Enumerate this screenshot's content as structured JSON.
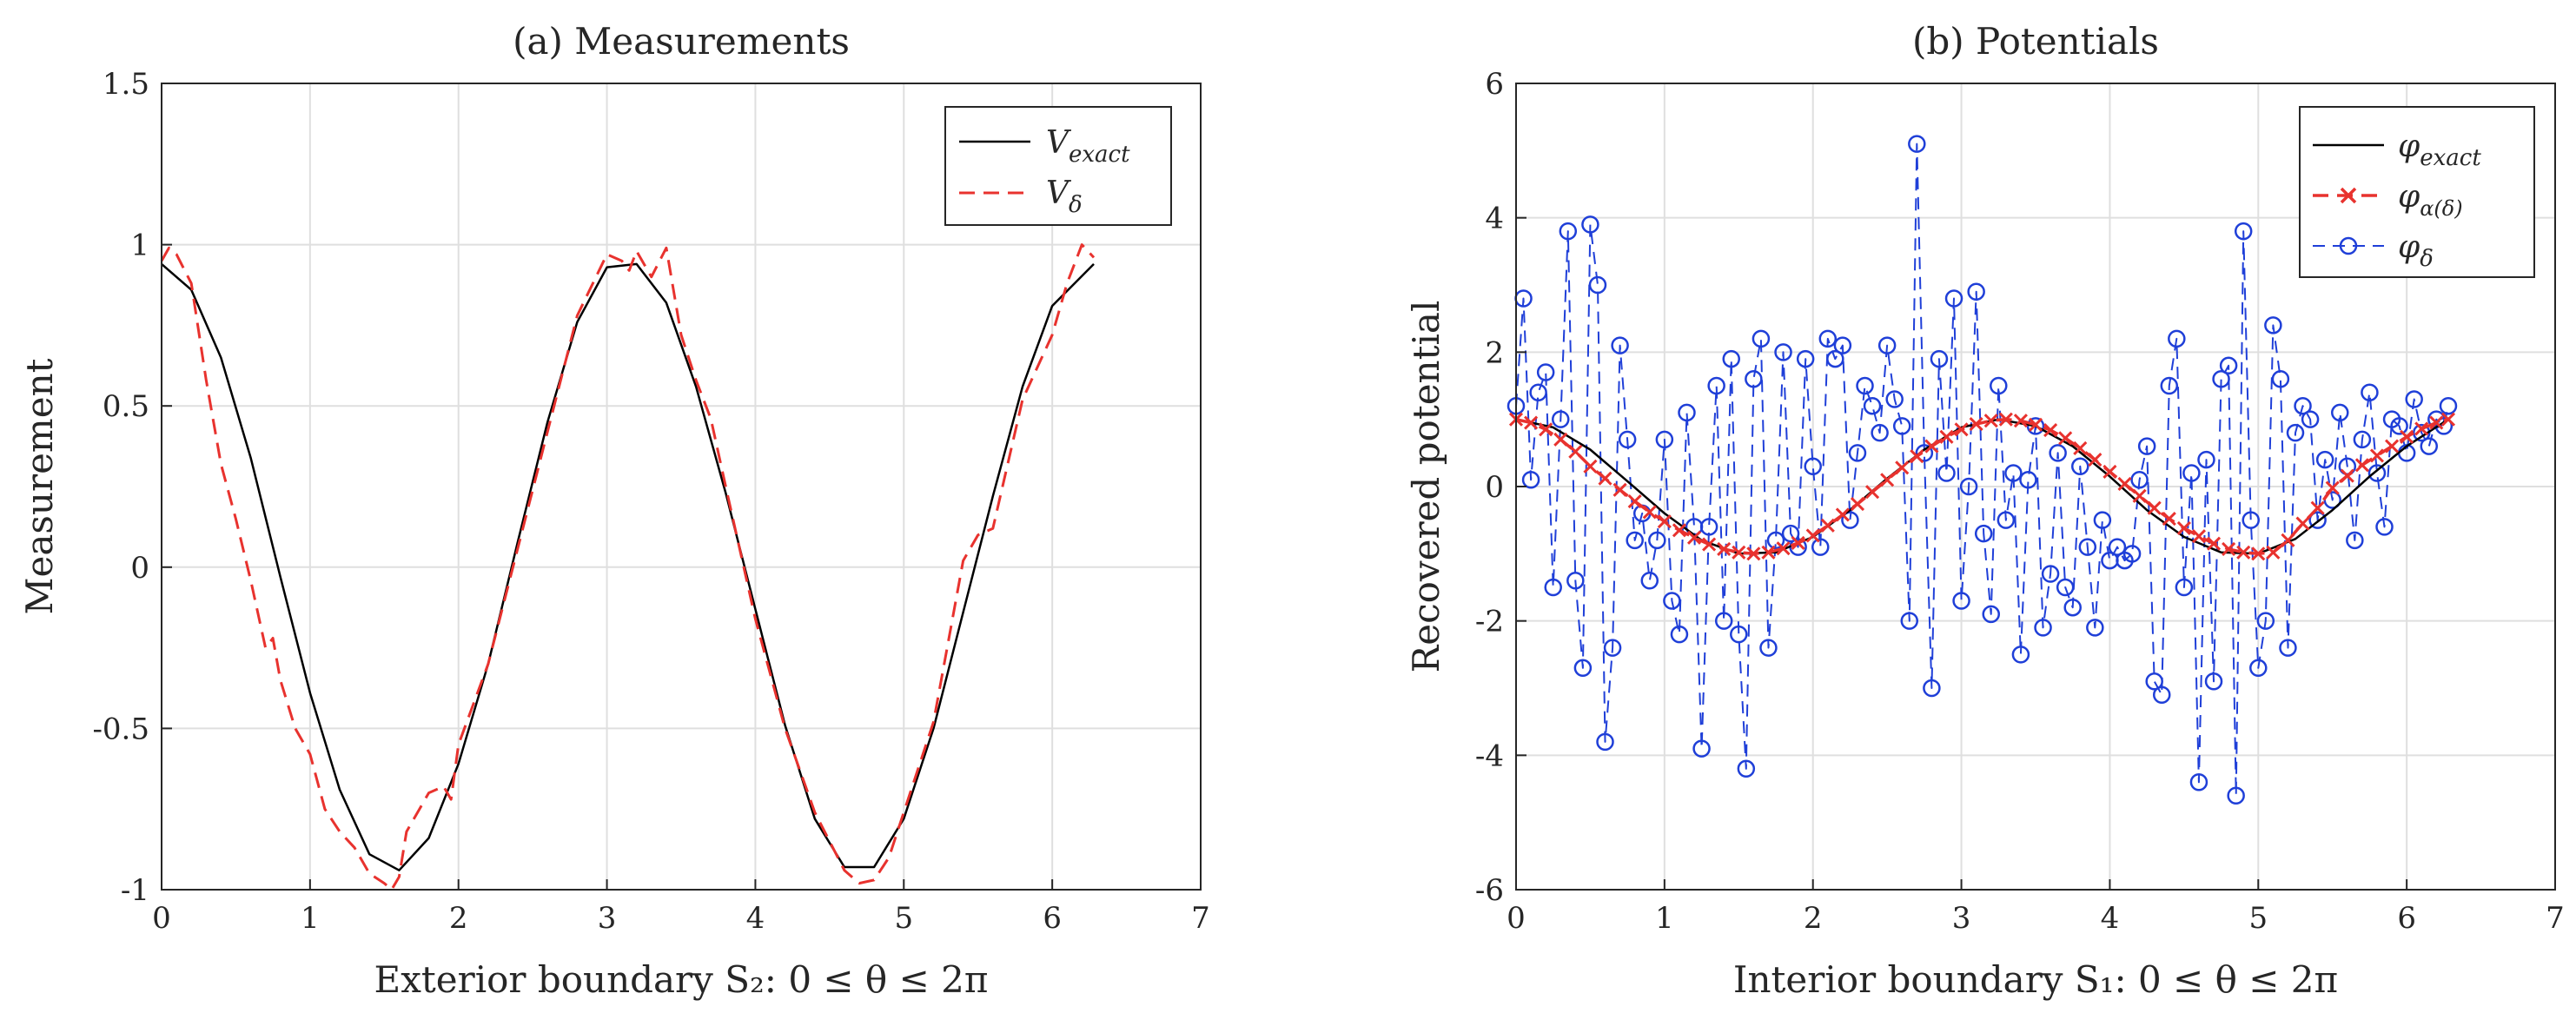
{
  "chart_data": [
    {
      "id": "a",
      "type": "line",
      "title": "(a) Measurements",
      "xlabel": "Exterior boundary S₂: 0 ≤ θ ≤ 2π",
      "ylabel": "Measurement",
      "xlim": [
        0,
        7
      ],
      "ylim": [
        -1,
        1.5
      ],
      "xticks": [
        0,
        1,
        2,
        3,
        4,
        5,
        6,
        7
      ],
      "xtick_labels": [
        "0",
        "1",
        "2",
        "3",
        "4",
        "5",
        "6",
        "7"
      ],
      "yticks": [
        -1,
        -0.5,
        0,
        0.5,
        1,
        1.5
      ],
      "ytick_labels": [
        "-1",
        "-0.5",
        "0",
        "0.5",
        "1",
        "1.5"
      ],
      "grid": true,
      "legend_position": "top-right",
      "series": [
        {
          "name": "V_exact",
          "legend_label": "V",
          "legend_sub": "exact",
          "style": "solid",
          "color": "#000000",
          "marker": "none",
          "x": [
            0,
            0.2,
            0.4,
            0.6,
            0.8,
            1.0,
            1.2,
            1.4,
            1.6,
            1.8,
            2.0,
            2.2,
            2.4,
            2.6,
            2.8,
            3.0,
            3.2,
            3.4,
            3.6,
            3.8,
            4.0,
            4.2,
            4.4,
            4.6,
            4.8,
            5.0,
            5.2,
            5.4,
            5.6,
            5.8,
            6.0,
            6.28
          ],
          "y": [
            0.94,
            0.86,
            0.65,
            0.34,
            -0.03,
            -0.39,
            -0.69,
            -0.89,
            -0.94,
            -0.84,
            -0.61,
            -0.3,
            0.08,
            0.45,
            0.76,
            0.93,
            0.94,
            0.82,
            0.56,
            0.23,
            -0.13,
            -0.49,
            -0.78,
            -0.93,
            -0.93,
            -0.78,
            -0.5,
            -0.14,
            0.22,
            0.56,
            0.81,
            0.94
          ]
        },
        {
          "name": "V_delta",
          "legend_label": "V",
          "legend_sub": "δ",
          "style": "dashed",
          "color": "#e8322e",
          "marker": "none",
          "x": [
            0,
            0.05,
            0.1,
            0.2,
            0.3,
            0.4,
            0.5,
            0.6,
            0.7,
            0.75,
            0.8,
            0.9,
            1.0,
            1.1,
            1.2,
            1.3,
            1.4,
            1.5,
            1.55,
            1.6,
            1.65,
            1.7,
            1.8,
            1.9,
            1.95,
            2.0,
            2.2,
            2.4,
            2.6,
            2.8,
            3.0,
            3.1,
            3.15,
            3.2,
            3.3,
            3.4,
            3.5,
            3.6,
            3.7,
            3.8,
            4.0,
            4.2,
            4.4,
            4.6,
            4.7,
            4.8,
            4.9,
            5.0,
            5.2,
            5.4,
            5.5,
            5.6,
            5.8,
            6.0,
            6.1,
            6.2,
            6.28
          ],
          "y": [
            0.95,
            0.99,
            0.97,
            0.88,
            0.58,
            0.32,
            0.15,
            -0.04,
            -0.25,
            -0.22,
            -0.35,
            -0.5,
            -0.58,
            -0.75,
            -0.82,
            -0.87,
            -0.95,
            -0.98,
            -1.0,
            -0.96,
            -0.82,
            -0.78,
            -0.7,
            -0.68,
            -0.72,
            -0.55,
            -0.3,
            0.06,
            0.42,
            0.78,
            0.97,
            0.95,
            0.92,
            0.98,
            0.9,
            0.99,
            0.72,
            0.58,
            0.46,
            0.25,
            -0.16,
            -0.5,
            -0.76,
            -0.94,
            -0.98,
            -0.97,
            -0.9,
            -0.76,
            -0.48,
            0.02,
            0.1,
            0.12,
            0.52,
            0.72,
            0.88,
            1.0,
            0.96
          ]
        }
      ]
    },
    {
      "id": "b",
      "type": "line",
      "title": "(b) Potentials",
      "xlabel": "Interior boundary S₁: 0 ≤ θ ≤ 2π",
      "ylabel": "Recovered potential",
      "xlim": [
        0,
        7
      ],
      "ylim": [
        -6,
        6
      ],
      "xticks": [
        0,
        1,
        2,
        3,
        4,
        5,
        6,
        7
      ],
      "xtick_labels": [
        "0",
        "1",
        "2",
        "3",
        "4",
        "5",
        "6",
        "7"
      ],
      "yticks": [
        -6,
        -4,
        -2,
        0,
        2,
        4,
        6
      ],
      "ytick_labels": [
        "-6",
        "-4",
        "-2",
        "0",
        "2",
        "4",
        "6"
      ],
      "grid": true,
      "legend_position": "top-right",
      "series": [
        {
          "name": "phi_exact",
          "legend_label": "φ",
          "legend_sub": "exact",
          "style": "solid",
          "color": "#000000",
          "marker": "none",
          "x": [
            0,
            0.25,
            0.5,
            0.75,
            1.0,
            1.25,
            1.5,
            1.75,
            2.0,
            2.25,
            2.5,
            2.75,
            3.0,
            3.25,
            3.5,
            3.75,
            4.0,
            4.25,
            4.5,
            4.75,
            5.0,
            5.25,
            5.5,
            5.75,
            6.0,
            6.28
          ],
          "y": [
            1.0,
            0.88,
            0.55,
            0.08,
            -0.4,
            -0.8,
            -1.0,
            -0.98,
            -0.75,
            -0.35,
            0.12,
            0.55,
            0.88,
            1.0,
            0.9,
            0.6,
            0.15,
            -0.35,
            -0.75,
            -0.98,
            -1.0,
            -0.78,
            -0.35,
            0.15,
            0.6,
            1.0
          ]
        },
        {
          "name": "phi_alpha_delta",
          "legend_label": "φ",
          "legend_sub": "α(δ)",
          "style": "dashed",
          "color": "#e8322e",
          "marker": "x",
          "x": [
            0,
            0.1,
            0.2,
            0.3,
            0.4,
            0.5,
            0.6,
            0.7,
            0.8,
            0.9,
            1.0,
            1.1,
            1.2,
            1.3,
            1.4,
            1.5,
            1.6,
            1.7,
            1.8,
            1.9,
            2.0,
            2.1,
            2.2,
            2.3,
            2.4,
            2.5,
            2.6,
            2.7,
            2.8,
            2.9,
            3.0,
            3.1,
            3.2,
            3.3,
            3.4,
            3.5,
            3.6,
            3.7,
            3.8,
            3.9,
            4.0,
            4.1,
            4.2,
            4.3,
            4.4,
            4.5,
            4.6,
            4.7,
            4.8,
            4.9,
            5.0,
            5.1,
            5.2,
            5.3,
            5.4,
            5.5,
            5.6,
            5.7,
            5.8,
            5.9,
            6.0,
            6.1,
            6.2,
            6.28
          ],
          "y": [
            1.0,
            0.95,
            0.85,
            0.7,
            0.52,
            0.3,
            0.12,
            -0.05,
            -0.22,
            -0.38,
            -0.52,
            -0.65,
            -0.76,
            -0.86,
            -0.93,
            -0.98,
            -1.0,
            -0.98,
            -0.92,
            -0.84,
            -0.73,
            -0.58,
            -0.42,
            -0.26,
            -0.08,
            0.1,
            0.28,
            0.45,
            0.6,
            0.74,
            0.85,
            0.93,
            0.98,
            1.0,
            0.98,
            0.92,
            0.84,
            0.72,
            0.57,
            0.4,
            0.22,
            0.04,
            -0.14,
            -0.32,
            -0.48,
            -0.62,
            -0.74,
            -0.85,
            -0.93,
            -0.98,
            -1.0,
            -0.98,
            -0.8,
            -0.55,
            -0.32,
            -0.02,
            0.16,
            0.32,
            0.46,
            0.6,
            0.74,
            0.86,
            0.95,
            1.0
          ]
        },
        {
          "name": "phi_delta",
          "legend_label": "φ",
          "legend_sub": "δ",
          "style": "dashed",
          "color": "#1f3fd8",
          "marker": "o",
          "x": [
            0.0,
            0.05,
            0.1,
            0.15,
            0.2,
            0.25,
            0.3,
            0.35,
            0.4,
            0.45,
            0.5,
            0.55,
            0.6,
            0.65,
            0.7,
            0.75,
            0.8,
            0.85,
            0.9,
            0.95,
            1.0,
            1.05,
            1.1,
            1.15,
            1.2,
            1.25,
            1.3,
            1.35,
            1.4,
            1.45,
            1.5,
            1.55,
            1.6,
            1.65,
            1.7,
            1.75,
            1.8,
            1.85,
            1.9,
            1.95,
            2.0,
            2.05,
            2.1,
            2.15,
            2.2,
            2.25,
            2.3,
            2.35,
            2.4,
            2.45,
            2.5,
            2.55,
            2.6,
            2.65,
            2.7,
            2.75,
            2.8,
            2.85,
            2.9,
            2.95,
            3.0,
            3.05,
            3.1,
            3.15,
            3.2,
            3.25,
            3.3,
            3.35,
            3.4,
            3.45,
            3.5,
            3.55,
            3.6,
            3.65,
            3.7,
            3.75,
            3.8,
            3.85,
            3.9,
            3.95,
            4.0,
            4.05,
            4.1,
            4.15,
            4.2,
            4.25,
            4.3,
            4.35,
            4.4,
            4.45,
            4.5,
            4.55,
            4.6,
            4.65,
            4.7,
            4.75,
            4.8,
            4.85,
            4.9,
            4.95,
            5.0,
            5.05,
            5.1,
            5.15,
            5.2,
            5.25,
            5.3,
            5.35,
            5.4,
            5.45,
            5.5,
            5.55,
            5.6,
            5.65,
            5.7,
            5.75,
            5.8,
            5.85,
            5.9,
            5.95,
            6.0,
            6.05,
            6.1,
            6.15,
            6.2,
            6.25,
            6.28
          ],
          "y": [
            1.2,
            2.8,
            0.1,
            1.4,
            1.7,
            -1.5,
            1.0,
            3.8,
            -1.4,
            -2.7,
            3.9,
            3.0,
            -3.8,
            -2.4,
            2.1,
            0.7,
            -0.8,
            -0.4,
            -1.4,
            -0.8,
            0.7,
            -1.7,
            -2.2,
            1.1,
            -0.6,
            -3.9,
            -0.6,
            1.5,
            -2.0,
            1.9,
            -2.2,
            -4.2,
            1.6,
            2.2,
            -2.4,
            -0.8,
            2.0,
            -0.7,
            -0.9,
            1.9,
            0.3,
            -0.9,
            2.2,
            1.9,
            2.1,
            -0.5,
            0.5,
            1.5,
            1.2,
            0.8,
            2.1,
            1.3,
            0.9,
            -2.0,
            5.1,
            0.5,
            -3.0,
            1.9,
            0.2,
            2.8,
            -1.7,
            0.0,
            2.9,
            -0.7,
            -1.9,
            1.5,
            -0.5,
            0.2,
            -2.5,
            0.1,
            0.9,
            -2.1,
            -1.3,
            0.5,
            -1.5,
            -1.8,
            0.3,
            -0.9,
            -2.1,
            -0.5,
            -1.1,
            -0.9,
            -1.1,
            -1.0,
            0.1,
            0.6,
            -2.9,
            -3.1,
            1.5,
            2.2,
            -1.5,
            0.2,
            -4.4,
            0.4,
            -2.9,
            1.6,
            1.8,
            -4.6,
            3.8,
            -0.5,
            -2.7,
            -2.0,
            2.4,
            1.6,
            -2.4,
            0.8,
            1.2,
            1.0,
            -0.5,
            0.4,
            -0.2,
            1.1,
            0.3,
            -0.8,
            0.7,
            1.4,
            0.2,
            -0.6,
            1.0,
            0.9,
            0.5,
            1.3,
            0.8,
            0.6,
            1.0,
            0.9,
            1.2
          ]
        }
      ]
    }
  ]
}
